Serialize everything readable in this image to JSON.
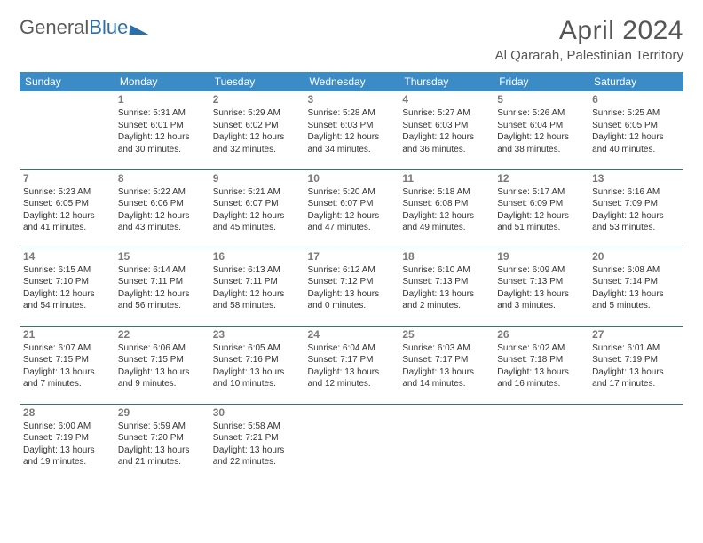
{
  "brand": {
    "prefix": "General",
    "suffix": "Blue"
  },
  "title": {
    "month": "April 2024",
    "location": "Al Qararah, Palestinian Territory"
  },
  "colors": {
    "header_bg": "#3b8bc7",
    "header_text": "#ffffff",
    "rule": "#2f6fa8",
    "text": "#333333",
    "muted": "#7a7a7a",
    "brand_gray": "#5a5a5a",
    "brand_blue": "#2f6fa8",
    "background": "#ffffff"
  },
  "layout": {
    "columns": 7,
    "rows": 5,
    "font_family": "Arial",
    "daynum_fontsize": 12,
    "entry_fontsize": 10,
    "header_fontsize": 12,
    "title_fontsize": 30,
    "subtitle_fontsize": 15
  },
  "weekdays": [
    "Sunday",
    "Monday",
    "Tuesday",
    "Wednesday",
    "Thursday",
    "Friday",
    "Saturday"
  ],
  "days": [
    {
      "n": 1,
      "sunrise": "5:31 AM",
      "sunset": "6:01 PM",
      "daylight": "12 hours and 30 minutes."
    },
    {
      "n": 2,
      "sunrise": "5:29 AM",
      "sunset": "6:02 PM",
      "daylight": "12 hours and 32 minutes."
    },
    {
      "n": 3,
      "sunrise": "5:28 AM",
      "sunset": "6:03 PM",
      "daylight": "12 hours and 34 minutes."
    },
    {
      "n": 4,
      "sunrise": "5:27 AM",
      "sunset": "6:03 PM",
      "daylight": "12 hours and 36 minutes."
    },
    {
      "n": 5,
      "sunrise": "5:26 AM",
      "sunset": "6:04 PM",
      "daylight": "12 hours and 38 minutes."
    },
    {
      "n": 6,
      "sunrise": "5:25 AM",
      "sunset": "6:05 PM",
      "daylight": "12 hours and 40 minutes."
    },
    {
      "n": 7,
      "sunrise": "5:23 AM",
      "sunset": "6:05 PM",
      "daylight": "12 hours and 41 minutes."
    },
    {
      "n": 8,
      "sunrise": "5:22 AM",
      "sunset": "6:06 PM",
      "daylight": "12 hours and 43 minutes."
    },
    {
      "n": 9,
      "sunrise": "5:21 AM",
      "sunset": "6:07 PM",
      "daylight": "12 hours and 45 minutes."
    },
    {
      "n": 10,
      "sunrise": "5:20 AM",
      "sunset": "6:07 PM",
      "daylight": "12 hours and 47 minutes."
    },
    {
      "n": 11,
      "sunrise": "5:18 AM",
      "sunset": "6:08 PM",
      "daylight": "12 hours and 49 minutes."
    },
    {
      "n": 12,
      "sunrise": "5:17 AM",
      "sunset": "6:09 PM",
      "daylight": "12 hours and 51 minutes."
    },
    {
      "n": 13,
      "sunrise": "6:16 AM",
      "sunset": "7:09 PM",
      "daylight": "12 hours and 53 minutes."
    },
    {
      "n": 14,
      "sunrise": "6:15 AM",
      "sunset": "7:10 PM",
      "daylight": "12 hours and 54 minutes."
    },
    {
      "n": 15,
      "sunrise": "6:14 AM",
      "sunset": "7:11 PM",
      "daylight": "12 hours and 56 minutes."
    },
    {
      "n": 16,
      "sunrise": "6:13 AM",
      "sunset": "7:11 PM",
      "daylight": "12 hours and 58 minutes."
    },
    {
      "n": 17,
      "sunrise": "6:12 AM",
      "sunset": "7:12 PM",
      "daylight": "13 hours and 0 minutes."
    },
    {
      "n": 18,
      "sunrise": "6:10 AM",
      "sunset": "7:13 PM",
      "daylight": "13 hours and 2 minutes."
    },
    {
      "n": 19,
      "sunrise": "6:09 AM",
      "sunset": "7:13 PM",
      "daylight": "13 hours and 3 minutes."
    },
    {
      "n": 20,
      "sunrise": "6:08 AM",
      "sunset": "7:14 PM",
      "daylight": "13 hours and 5 minutes."
    },
    {
      "n": 21,
      "sunrise": "6:07 AM",
      "sunset": "7:15 PM",
      "daylight": "13 hours and 7 minutes."
    },
    {
      "n": 22,
      "sunrise": "6:06 AM",
      "sunset": "7:15 PM",
      "daylight": "13 hours and 9 minutes."
    },
    {
      "n": 23,
      "sunrise": "6:05 AM",
      "sunset": "7:16 PM",
      "daylight": "13 hours and 10 minutes."
    },
    {
      "n": 24,
      "sunrise": "6:04 AM",
      "sunset": "7:17 PM",
      "daylight": "13 hours and 12 minutes."
    },
    {
      "n": 25,
      "sunrise": "6:03 AM",
      "sunset": "7:17 PM",
      "daylight": "13 hours and 14 minutes."
    },
    {
      "n": 26,
      "sunrise": "6:02 AM",
      "sunset": "7:18 PM",
      "daylight": "13 hours and 16 minutes."
    },
    {
      "n": 27,
      "sunrise": "6:01 AM",
      "sunset": "7:19 PM",
      "daylight": "13 hours and 17 minutes."
    },
    {
      "n": 28,
      "sunrise": "6:00 AM",
      "sunset": "7:19 PM",
      "daylight": "13 hours and 19 minutes."
    },
    {
      "n": 29,
      "sunrise": "5:59 AM",
      "sunset": "7:20 PM",
      "daylight": "13 hours and 21 minutes."
    },
    {
      "n": 30,
      "sunrise": "5:58 AM",
      "sunset": "7:21 PM",
      "daylight": "13 hours and 22 minutes."
    }
  ],
  "labels": {
    "sunrise": "Sunrise: ",
    "sunset": "Sunset: ",
    "daylight": "Daylight: "
  },
  "start_offset": 1
}
